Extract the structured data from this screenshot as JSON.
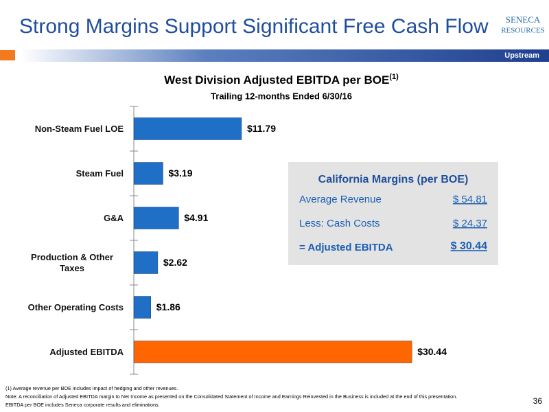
{
  "header": {
    "title": "Strong Margins Support Significant Free Cash Flow",
    "logo": "SENECA",
    "logo_sub": "RESOURCES",
    "section": "Upstream"
  },
  "chart_data": {
    "type": "bar",
    "orientation": "horizontal",
    "title": "West Division Adjusted EBITDA per BOE",
    "title_note": "(1)",
    "subtitle": "Trailing 12-months Ended 6/30/16",
    "categories": [
      "Non-Steam Fuel LOE",
      "Steam Fuel",
      "G&A",
      "Production & Other Taxes",
      "Other Operating Costs",
      "Adjusted EBITDA"
    ],
    "values": [
      11.79,
      3.19,
      4.91,
      2.62,
      1.86,
      30.44
    ],
    "value_labels": [
      "$11.79",
      "$3.19",
      "$4.91",
      "$2.62",
      "$1.86",
      "$30.44"
    ],
    "colors": [
      "#1f6fc6",
      "#1f6fc6",
      "#1f6fc6",
      "#1f6fc6",
      "#1f6fc6",
      "#ff6600"
    ],
    "xlim": [
      0,
      45
    ]
  },
  "margins_box": {
    "title": "California Margins (per BOE)",
    "rows": [
      [
        "Average Revenue",
        "$ 54.81"
      ],
      [
        "Less: Cash Costs",
        "$ 24.37"
      ],
      [
        "= Adjusted EBITDA",
        "$ 30.44"
      ]
    ]
  },
  "footnotes": [
    "(1)     Average revenue per BOE  includes impact of hedging and other revenues.",
    "Note: A reconciliation of Adjusted EBITDA margin to Net Income as presented on the Consolidated Statement of Income and Earnings Reinvested in the Business is included at the end of this presentation.",
    "EBITDA per BOE includes Seneca corporate results and eliminations."
  ],
  "page_number": "36"
}
